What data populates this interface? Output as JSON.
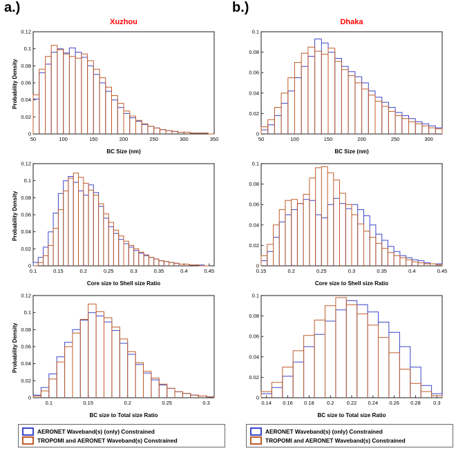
{
  "figure": {
    "panel_a_label": "a.)",
    "panel_b_label": "b.)",
    "title_a": "Xuzhou",
    "title_b": "Dhaka",
    "title_color": "#FF0000"
  },
  "legend": {
    "items": [
      {
        "label": "AERONET Waveband(s) (only) Constrained",
        "color": "#3A45C8"
      },
      {
        "label": "TROPOMI and AERONET Waveband(s) Constrained",
        "color": "#C05A28"
      }
    ]
  },
  "chart_data": [
    {
      "type": "bar",
      "subtype": "step-histogram",
      "location": "Xuzhou",
      "title": "Xuzhou",
      "xlabel": "BC Size (nm)",
      "ylabel": "Probability Density",
      "xlim": [
        50,
        350
      ],
      "ylim": [
        0,
        0.12
      ],
      "xticks": [
        50,
        100,
        150,
        200,
        250,
        300,
        350
      ],
      "yticks": [
        0,
        0.02,
        0.04,
        0.06,
        0.08,
        0.1,
        0.12
      ],
      "bin_start": 50,
      "bin_width": 10,
      "grid": false,
      "series": [
        {
          "name": "AERONET Waveband(s) (only) Constrained",
          "color": "#3A45C8",
          "values": [
            0.041,
            0.072,
            0.082,
            0.096,
            0.1,
            0.095,
            0.101,
            0.096,
            0.09,
            0.08,
            0.07,
            0.06,
            0.05,
            0.04,
            0.031,
            0.024,
            0.019,
            0.015,
            0.011,
            0.009,
            0.007,
            0.005,
            0.004,
            0.003,
            0.002,
            0.002,
            0.001,
            0.001,
            0.001,
            0.0
          ]
        },
        {
          "name": "TROPOMI and AERONET Waveband(s) Constrained",
          "color": "#C05A28",
          "values": [
            0.046,
            0.076,
            0.091,
            0.104,
            0.099,
            0.094,
            0.091,
            0.089,
            0.094,
            0.086,
            0.076,
            0.066,
            0.055,
            0.045,
            0.036,
            0.027,
            0.021,
            0.016,
            0.012,
            0.009,
            0.007,
            0.005,
            0.004,
            0.003,
            0.002,
            0.002,
            0.001,
            0.001,
            0.001,
            0.0
          ]
        }
      ]
    },
    {
      "type": "bar",
      "subtype": "step-histogram",
      "location": "Xuzhou",
      "title": "",
      "xlabel": "Core size to Shell size Ratio",
      "ylabel": "Probability Density",
      "xlim": [
        0.1,
        0.46
      ],
      "ylim": [
        0,
        0.12
      ],
      "xticks": [
        0.1,
        0.15,
        0.2,
        0.25,
        0.3,
        0.35,
        0.4,
        0.45
      ],
      "yticks": [
        0,
        0.02,
        0.04,
        0.06,
        0.08,
        0.1,
        0.12
      ],
      "bin_start": 0.1,
      "bin_width": 0.01,
      "grid": false,
      "series": [
        {
          "name": "AERONET Waveband(s) (only) Constrained",
          "color": "#3A45C8",
          "values": [
            0.004,
            0.01,
            0.022,
            0.04,
            0.062,
            0.085,
            0.1,
            0.105,
            0.098,
            0.088,
            0.083,
            0.095,
            0.086,
            0.07,
            0.056,
            0.046,
            0.038,
            0.031,
            0.026,
            0.022,
            0.018,
            0.015,
            0.012,
            0.01,
            0.008,
            0.006,
            0.005,
            0.004,
            0.003,
            0.002,
            0.002,
            0.001,
            0.001,
            0.001,
            0.0
          ]
        },
        {
          "name": "TROPOMI and AERONET Waveband(s) Constrained",
          "color": "#C05A28",
          "values": [
            0.0,
            0.004,
            0.012,
            0.024,
            0.044,
            0.066,
            0.088,
            0.103,
            0.109,
            0.104,
            0.097,
            0.089,
            0.083,
            0.073,
            0.061,
            0.051,
            0.042,
            0.035,
            0.029,
            0.024,
            0.02,
            0.016,
            0.013,
            0.01,
            0.008,
            0.006,
            0.005,
            0.004,
            0.003,
            0.002,
            0.002,
            0.001,
            0.001,
            0.0,
            0.0
          ]
        }
      ]
    },
    {
      "type": "bar",
      "subtype": "step-histogram",
      "location": "Xuzhou",
      "title": "",
      "xlabel": "BC size to Total size Ratio",
      "ylabel": "Probability Density",
      "xlim": [
        0.08,
        0.31
      ],
      "ylim": [
        0,
        0.12
      ],
      "xticks": [
        0.1,
        0.15,
        0.2,
        0.25,
        0.3
      ],
      "yticks": [
        0,
        0.02,
        0.04,
        0.06,
        0.08,
        0.1,
        0.12
      ],
      "bin_start": 0.08,
      "bin_width": 0.01,
      "grid": false,
      "series": [
        {
          "name": "AERONET Waveband(s) (only) Constrained",
          "color": "#3A45C8",
          "values": [
            0.003,
            0.012,
            0.028,
            0.048,
            0.065,
            0.08,
            0.091,
            0.1,
            0.096,
            0.089,
            0.079,
            0.064,
            0.051,
            0.039,
            0.029,
            0.021,
            0.015,
            0.011,
            0.007,
            0.005,
            0.003,
            0.002,
            0.001
          ]
        },
        {
          "name": "TROPOMI and AERONET Waveband(s) Constrained",
          "color": "#C05A28",
          "values": [
            0.002,
            0.008,
            0.022,
            0.042,
            0.06,
            0.076,
            0.092,
            0.11,
            0.101,
            0.094,
            0.083,
            0.069,
            0.054,
            0.041,
            0.031,
            0.023,
            0.016,
            0.011,
            0.007,
            0.005,
            0.003,
            0.002,
            0.001
          ]
        }
      ]
    },
    {
      "type": "bar",
      "subtype": "step-histogram",
      "location": "Dhaka",
      "title": "Dhaka",
      "xlabel": "BC Size (nm)",
      "ylabel": "",
      "xlim": [
        50,
        320
      ],
      "ylim": [
        0,
        0.1
      ],
      "xticks": [
        50,
        100,
        150,
        200,
        250,
        300
      ],
      "yticks": [
        0,
        0.02,
        0.04,
        0.06,
        0.08,
        0.1
      ],
      "bin_start": 50,
      "bin_width": 10,
      "grid": false,
      "series": [
        {
          "name": "AERONET Waveband(s) (only) Constrained",
          "color": "#3A45C8",
          "values": [
            0.004,
            0.009,
            0.018,
            0.03,
            0.042,
            0.055,
            0.066,
            0.076,
            0.093,
            0.089,
            0.08,
            0.074,
            0.066,
            0.061,
            0.056,
            0.05,
            0.042,
            0.036,
            0.031,
            0.026,
            0.021,
            0.018,
            0.015,
            0.012,
            0.01,
            0.008,
            0.006
          ]
        },
        {
          "name": "TROPOMI and AERONET Waveband(s) Constrained",
          "color": "#C05A28",
          "values": [
            0.007,
            0.014,
            0.026,
            0.04,
            0.055,
            0.07,
            0.079,
            0.085,
            0.081,
            0.078,
            0.084,
            0.071,
            0.063,
            0.057,
            0.05,
            0.044,
            0.038,
            0.032,
            0.027,
            0.022,
            0.018,
            0.015,
            0.012,
            0.01,
            0.008,
            0.006,
            0.005
          ]
        }
      ]
    },
    {
      "type": "bar",
      "subtype": "step-histogram",
      "location": "Dhaka",
      "title": "",
      "xlabel": "Core size to Shell size Ratio",
      "ylabel": "",
      "xlim": [
        0.15,
        0.45
      ],
      "ylim": [
        0,
        0.1
      ],
      "xticks": [
        0.15,
        0.2,
        0.25,
        0.3,
        0.35,
        0.4,
        0.45
      ],
      "yticks": [
        0,
        0.02,
        0.04,
        0.06,
        0.08,
        0.1
      ],
      "bin_start": 0.15,
      "bin_width": 0.01,
      "grid": false,
      "series": [
        {
          "name": "AERONET Waveband(s) (only) Constrained",
          "color": "#3A45C8",
          "values": [
            0.005,
            0.014,
            0.028,
            0.043,
            0.05,
            0.055,
            0.061,
            0.065,
            0.064,
            0.05,
            0.047,
            0.06,
            0.066,
            0.061,
            0.056,
            0.06,
            0.055,
            0.049,
            0.04,
            0.031,
            0.025,
            0.019,
            0.014,
            0.01,
            0.008,
            0.006,
            0.005,
            0.003,
            0.002,
            0.002
          ]
        },
        {
          "name": "TROPOMI and AERONET Waveband(s) Constrained",
          "color": "#C05A28",
          "values": [
            0.01,
            0.021,
            0.04,
            0.055,
            0.064,
            0.065,
            0.061,
            0.07,
            0.086,
            0.096,
            0.097,
            0.091,
            0.084,
            0.071,
            0.06,
            0.05,
            0.041,
            0.034,
            0.028,
            0.022,
            0.017,
            0.013,
            0.01,
            0.008,
            0.006,
            0.004,
            0.003,
            0.002,
            0.002,
            0.001
          ]
        }
      ]
    },
    {
      "type": "bar",
      "subtype": "step-histogram",
      "location": "Dhaka",
      "title": "",
      "xlabel": "BC size to Total size Ratio",
      "ylabel": "",
      "xlim": [
        0.135,
        0.305
      ],
      "ylim": [
        0,
        0.1
      ],
      "xticks": [
        0.14,
        0.16,
        0.18,
        0.2,
        0.22,
        0.24,
        0.26,
        0.28,
        0.3
      ],
      "yticks": [
        0,
        0.02,
        0.04,
        0.06,
        0.08,
        0.1
      ],
      "bin_start": 0.135,
      "bin_width": 0.01,
      "grid": false,
      "series": [
        {
          "name": "AERONET Waveband(s) (only) Constrained",
          "color": "#3A45C8",
          "values": [
            0.004,
            0.01,
            0.021,
            0.035,
            0.05,
            0.062,
            0.075,
            0.086,
            0.095,
            0.091,
            0.084,
            0.074,
            0.064,
            0.05,
            0.03,
            0.012,
            0.004
          ]
        },
        {
          "name": "TROPOMI and AERONET Waveband(s) Constrained",
          "color": "#C05A28",
          "values": [
            0.006,
            0.015,
            0.03,
            0.046,
            0.061,
            0.076,
            0.09,
            0.098,
            0.091,
            0.082,
            0.071,
            0.059,
            0.044,
            0.028,
            0.014,
            0.006,
            0.002
          ]
        }
      ]
    }
  ]
}
